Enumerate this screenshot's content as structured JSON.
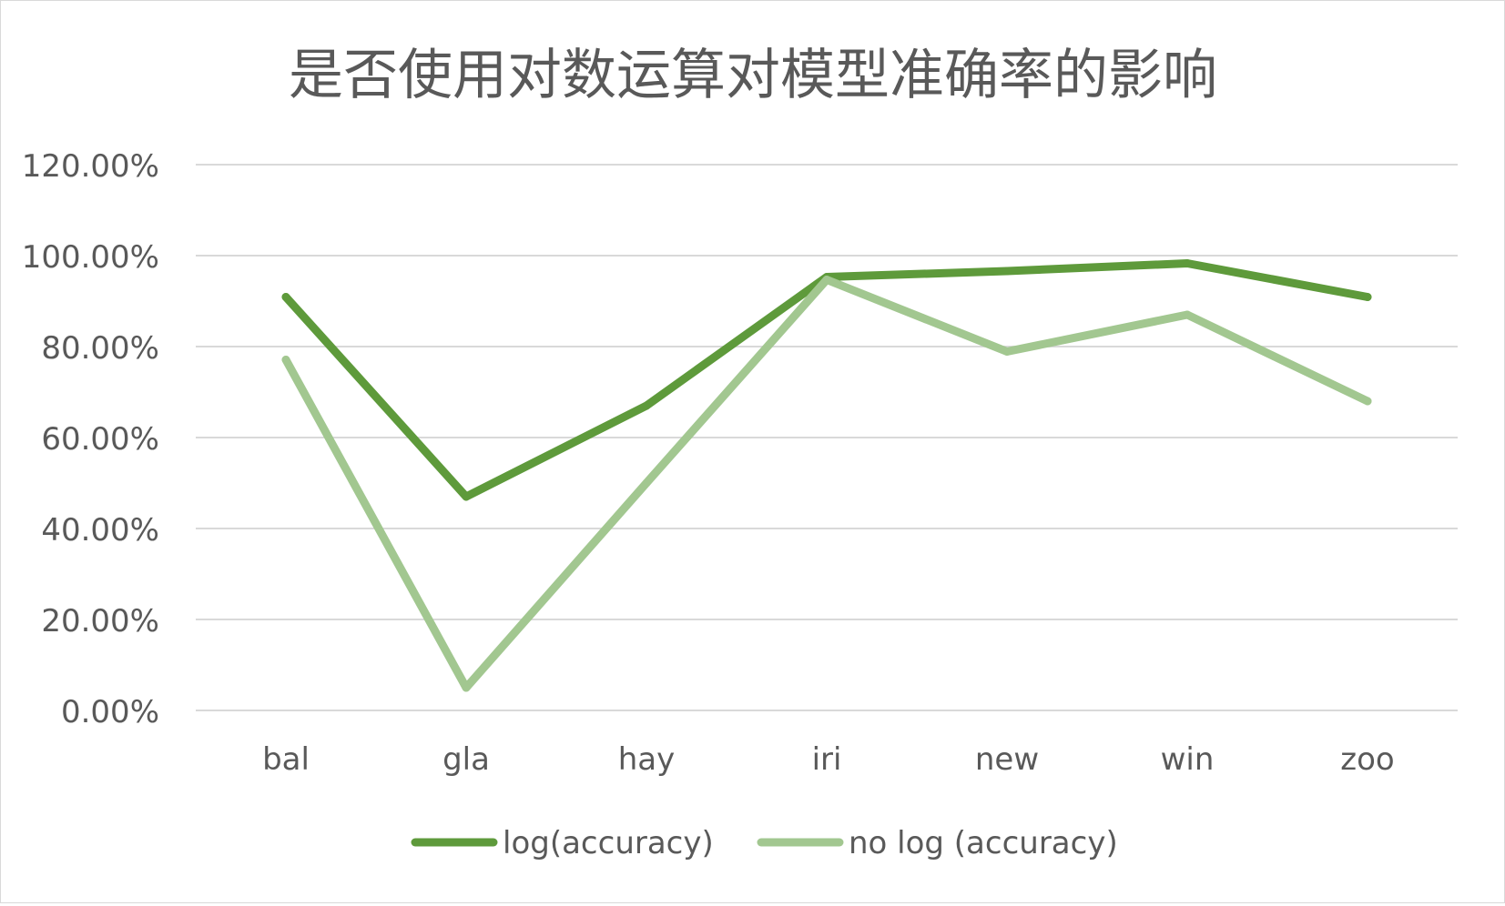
{
  "chart_data": {
    "type": "line",
    "title": "是否使用对数运算对模型准确率的影响",
    "xlabel": "",
    "ylabel": "",
    "categories": [
      "bal",
      "gla",
      "hay",
      "iri",
      "new",
      "win",
      "zoo"
    ],
    "ylim": [
      0,
      1.2
    ],
    "yticks": [
      0,
      0.2,
      0.4,
      0.6,
      0.8,
      1.0,
      1.2
    ],
    "ytick_labels": [
      "0.00%",
      "20.00%",
      "40.00%",
      "60.00%",
      "80.00%",
      "100.00%",
      "120.00%"
    ],
    "grid": true,
    "legend_position": "bottom",
    "series": [
      {
        "name": "log(accuracy)",
        "color": "#5e9a3b",
        "values": [
          0.909,
          0.47,
          0.67,
          0.953,
          0.966,
          0.983,
          0.909
        ]
      },
      {
        "name": "no log (accuracy)",
        "color": "#a2c790",
        "values": [
          0.771,
          0.05,
          0.5,
          0.947,
          0.789,
          0.87,
          0.68
        ]
      }
    ]
  }
}
